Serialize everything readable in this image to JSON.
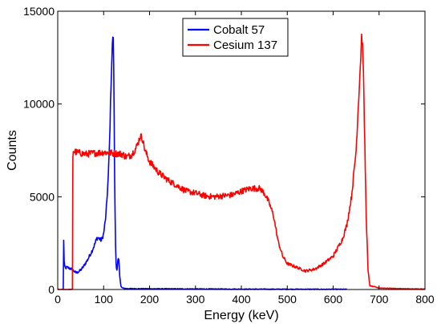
{
  "chart_data": {
    "type": "line",
    "title": "",
    "xlabel": "Energy (keV)",
    "ylabel": "Counts",
    "xlim": [
      0,
      800
    ],
    "ylim": [
      0,
      15000
    ],
    "xticks": [
      0,
      100,
      200,
      300,
      400,
      500,
      600,
      700,
      800
    ],
    "yticks": [
      0,
      5000,
      10000,
      15000
    ],
    "grid": false,
    "legend_position": "top-center",
    "series": [
      {
        "name": "Cobalt 57",
        "color": "#0000ff",
        "x": [
          12,
          13,
          14,
          15,
          17,
          20,
          25,
          30,
          35,
          40,
          45,
          50,
          55,
          60,
          65,
          70,
          75,
          80,
          85,
          88,
          92,
          95,
          100,
          105,
          110,
          113,
          116,
          118,
          120,
          121,
          122,
          123,
          124,
          125,
          126,
          127,
          128,
          129,
          130,
          131,
          132,
          133,
          134,
          135,
          137,
          138,
          140,
          142,
          145,
          150,
          200,
          300,
          400,
          500,
          630
        ],
        "y": [
          0,
          2700,
          1500,
          1250,
          1150,
          1200,
          1150,
          1100,
          1000,
          900,
          950,
          1050,
          1200,
          1400,
          1600,
          1850,
          2100,
          2400,
          2750,
          2800,
          2700,
          2650,
          3000,
          4000,
          6000,
          8000,
          11000,
          12500,
          13700,
          13400,
          12000,
          9000,
          6000,
          4000,
          2500,
          1500,
          1100,
          1000,
          1200,
          1500,
          1650,
          1550,
          1300,
          800,
          300,
          150,
          100,
          80,
          60,
          50,
          40,
          30,
          20,
          15,
          10
        ]
      },
      {
        "name": "Cesium 137",
        "color": "#ff0000",
        "x": [
          0,
          32,
          33,
          34,
          35,
          40,
          60,
          80,
          100,
          120,
          140,
          150,
          160,
          170,
          175,
          180,
          185,
          190,
          200,
          220,
          240,
          260,
          280,
          300,
          320,
          340,
          360,
          380,
          400,
          420,
          440,
          450,
          460,
          470,
          480,
          490,
          500,
          520,
          540,
          560,
          580,
          600,
          620,
          630,
          640,
          650,
          655,
          660,
          662,
          665,
          668,
          672,
          676,
          680,
          700,
          750,
          800
        ],
        "y": [
          0,
          0,
          7200,
          7500,
          7450,
          7400,
          7300,
          7350,
          7400,
          7350,
          7300,
          7150,
          7250,
          7600,
          7900,
          8300,
          8100,
          7500,
          6900,
          6300,
          5900,
          5600,
          5300,
          5200,
          5050,
          5000,
          5050,
          5100,
          5300,
          5450,
          5450,
          5200,
          4700,
          4000,
          2600,
          1800,
          1400,
          1200,
          1000,
          1100,
          1400,
          1800,
          2700,
          3500,
          5000,
          7500,
          10000,
          12500,
          13700,
          12800,
          9000,
          4000,
          1000,
          200,
          80,
          40,
          20
        ]
      }
    ]
  }
}
